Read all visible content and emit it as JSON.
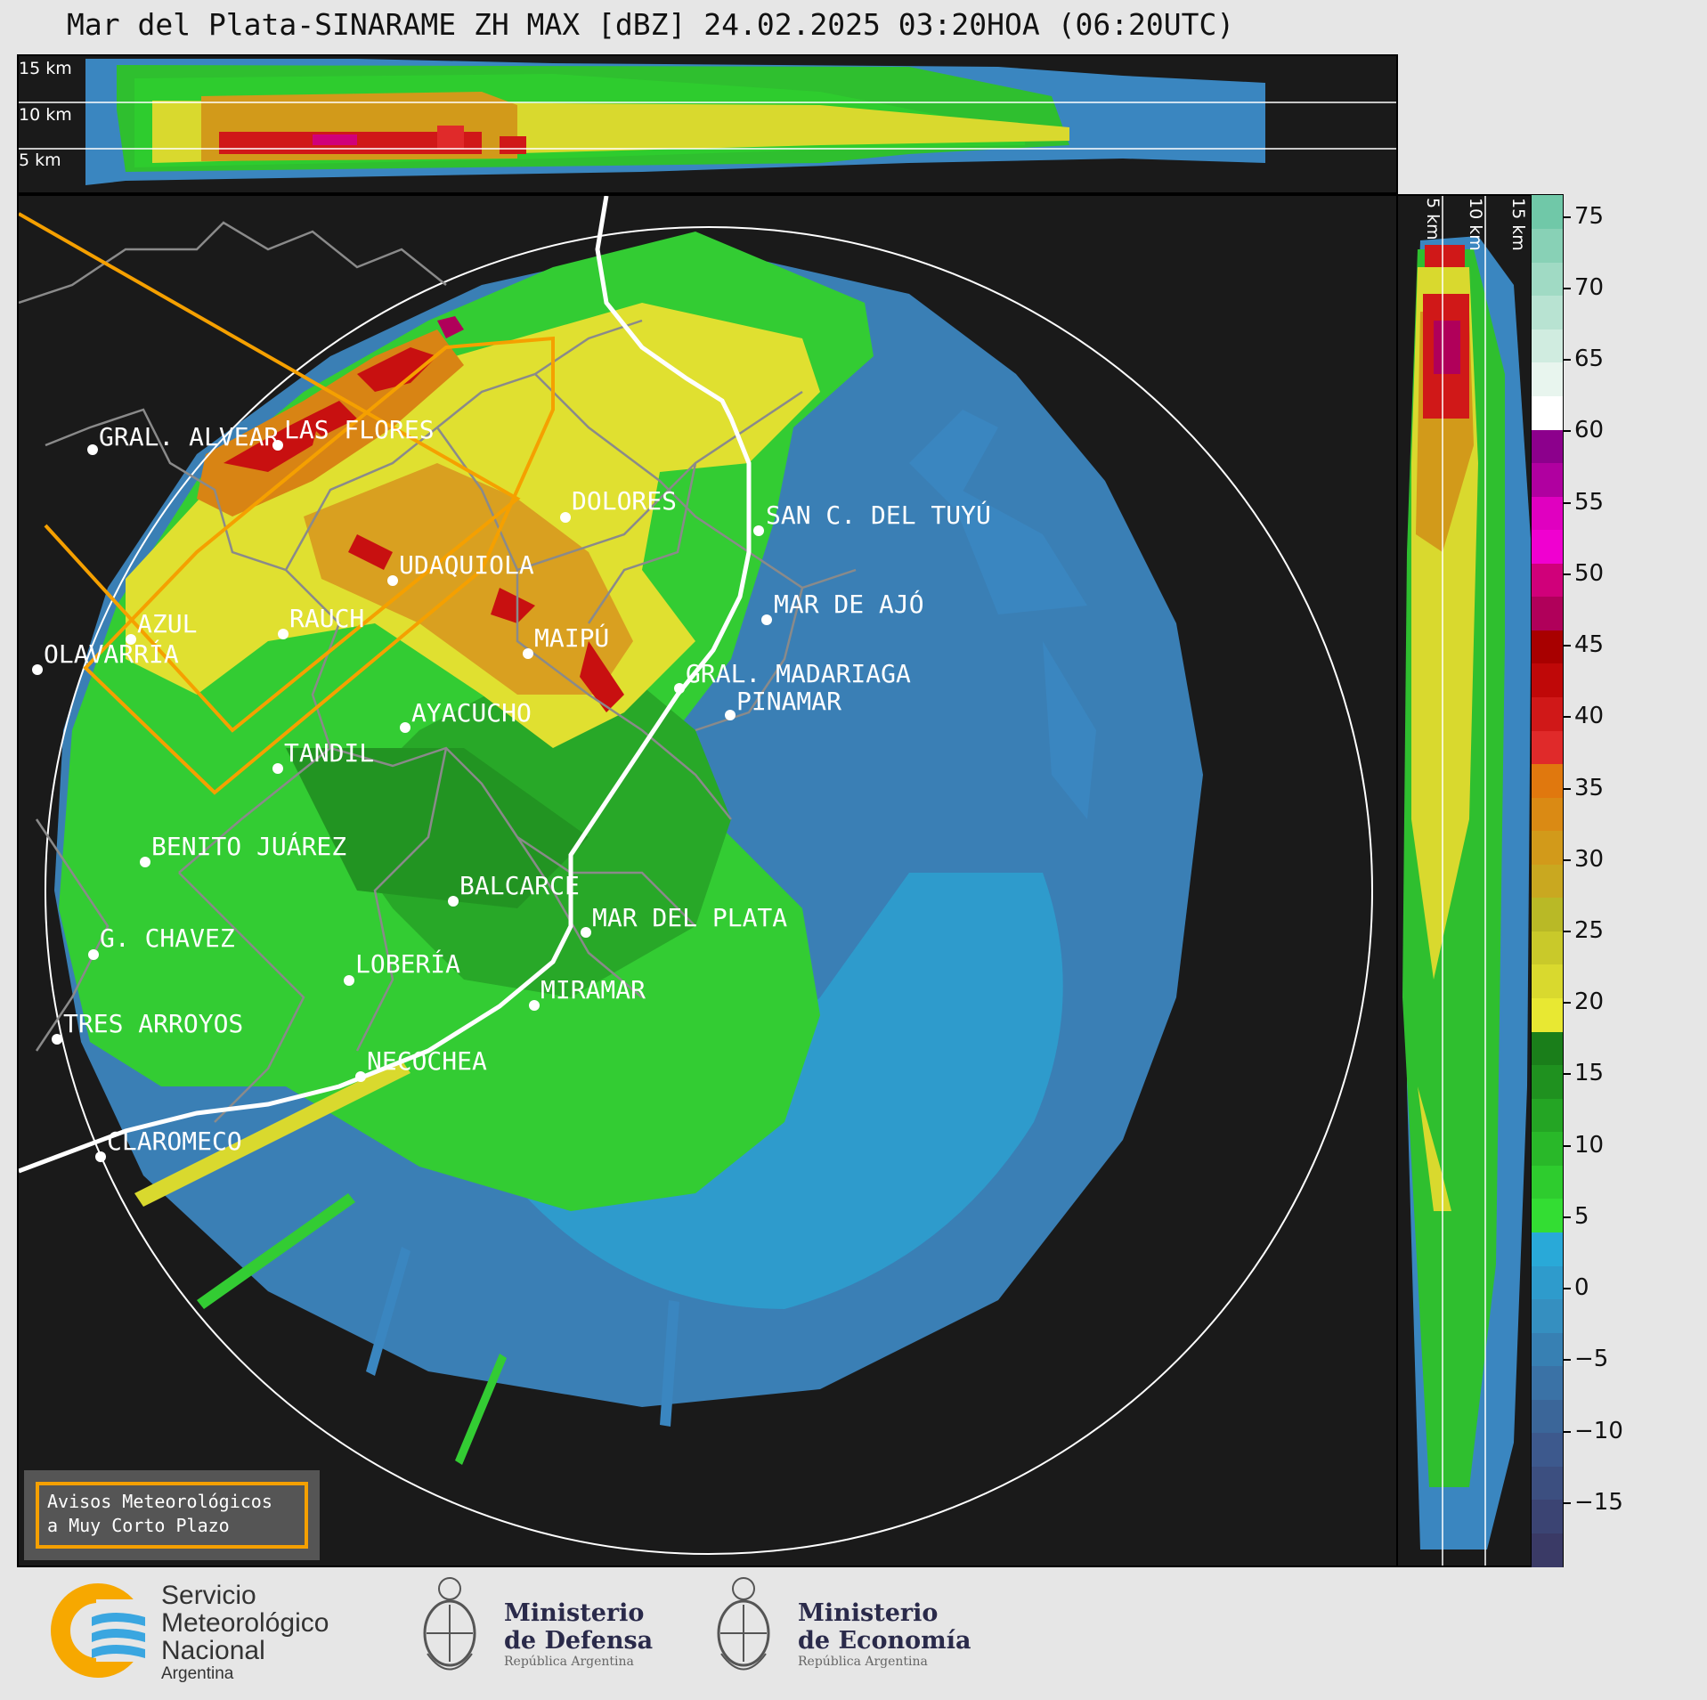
{
  "title": "Mar del Plata-SINARAME ZH MAX [dBZ] 24.02.2025 03:20HOA (06:20UTC)",
  "height_labels": [
    "15 km",
    "10 km",
    "5 km"
  ],
  "vertical_labels": [
    "5 km",
    "10 km",
    "15 km"
  ],
  "colorbar": {
    "ticks": [
      "75",
      "70",
      "65",
      "60",
      "55",
      "50",
      "45",
      "40",
      "35",
      "30",
      "25",
      "20",
      "15",
      "10",
      "5",
      "0",
      "−5",
      "−10",
      "−15"
    ],
    "colors": [
      "#3a3a66",
      "#3b4473",
      "#3c4f80",
      "#3d598d",
      "#3b6699",
      "#3a72a6",
      "#3780b3",
      "#358fc0",
      "#2e9bcc",
      "#29a9d8",
      "#33dd33",
      "#2ecc2e",
      "#29b829",
      "#24a524",
      "#1f911f",
      "#1a7e1a",
      "#e8e832",
      "#d9d92e",
      "#c9c92a",
      "#b9b926",
      "#c9a820",
      "#d29a1a",
      "#da8a14",
      "#e0780e",
      "#e02a2a",
      "#d01818",
      "#bf0808",
      "#a80000",
      "#b0005a",
      "#d0007a",
      "#f000d0",
      "#e000c0",
      "#b000a0",
      "#8c008c",
      "#ffffff",
      "#e8f5ee",
      "#d0ece0",
      "#b8e3d2",
      "#a0dac4",
      "#88d1b6",
      "#70c8a8"
    ]
  },
  "cities": [
    {
      "name": "GRAL. ALVEAR"
    },
    {
      "name": "LAS FLORES"
    },
    {
      "name": "DOLORES"
    },
    {
      "name": "SAN C. DEL TUYÚ"
    },
    {
      "name": "UDAQUIOLA"
    },
    {
      "name": "AZUL"
    },
    {
      "name": "RAUCH"
    },
    {
      "name": "OLAVARRÍA"
    },
    {
      "name": "MAIPÚ"
    },
    {
      "name": "MAR DE AJÓ"
    },
    {
      "name": "GRAL. MADARIAGA"
    },
    {
      "name": "PINAMAR"
    },
    {
      "name": "AYACUCHO"
    },
    {
      "name": "TANDIL"
    },
    {
      "name": "BENITO JUÁREZ"
    },
    {
      "name": "BALCARCE"
    },
    {
      "name": "MAR DEL PLATA"
    },
    {
      "name": "G. CHAVEZ"
    },
    {
      "name": "LOBERÍA"
    },
    {
      "name": "MIRAMAR"
    },
    {
      "name": "TRES ARROYOS"
    },
    {
      "name": "NECOCHEA"
    },
    {
      "name": "CLAROMECO"
    }
  ],
  "avisos": {
    "line1": "Avisos Meteorológicos",
    "line2": "a Muy Corto Plazo"
  },
  "logos": {
    "smn": {
      "line1": "Servicio",
      "line2": "Meteorológico",
      "line3": "Nacional",
      "line4": "Argentina"
    },
    "defensa": {
      "line1": "Ministerio",
      "line2": "de Defensa",
      "line3": "República Argentina"
    },
    "economia": {
      "line1": "Ministerio",
      "line2": "de Economía",
      "line3": "República Argentina"
    }
  },
  "colors": {
    "background": "#1a1a1a",
    "warning_outline": "#f5a000",
    "coast": "#ffffff",
    "border": "#808080"
  }
}
